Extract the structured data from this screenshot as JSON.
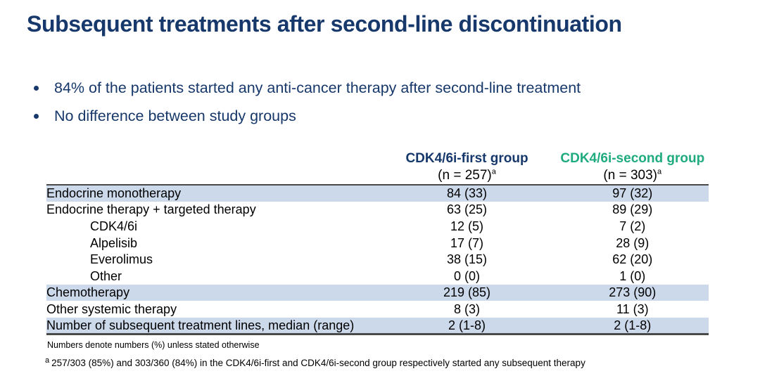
{
  "colors": {
    "navy": "#17386B",
    "green": "#1FAB7F",
    "highlight": "#CCD9EB",
    "rule": "#4A4A4A",
    "text": "#000000"
  },
  "title": "Subsequent treatments after second-line discontinuation",
  "bullets": [
    "84% of the patients started any anti-cancer therapy after second-line treatment",
    "No difference between study groups"
  ],
  "table": {
    "group_headers": [
      {
        "label": "CDK4/6i-first group",
        "n": "(n = 257)",
        "sup": "a"
      },
      {
        "label": "CDK4/6i-second group",
        "n": "(n = 303)",
        "sup": "a"
      }
    ],
    "rows": [
      {
        "label": "Endocrine monotherapy",
        "first": "84 (33)",
        "second": "97 (32)",
        "highlight": true,
        "indent": false
      },
      {
        "label": "Endocrine therapy + targeted therapy",
        "first": "63 (25)",
        "second": "89 (29)",
        "highlight": false,
        "indent": false
      },
      {
        "label": "CDK4/6i",
        "first": "12 (5)",
        "second": "7 (2)",
        "highlight": false,
        "indent": true
      },
      {
        "label": "Alpelisib",
        "first": "17 (7)",
        "second": "28 (9)",
        "highlight": false,
        "indent": true
      },
      {
        "label": "Everolimus",
        "first": "38 (15)",
        "second": "62 (20)",
        "highlight": false,
        "indent": true
      },
      {
        "label": "Other",
        "first": "0 (0)",
        "second": "1 (0)",
        "highlight": false,
        "indent": true
      },
      {
        "label": "Chemotherapy",
        "first": "219 (85)",
        "second": "273 (90)",
        "highlight": true,
        "indent": false
      },
      {
        "label": "Other systemic therapy",
        "first": "8 (3)",
        "second": "11 (3)",
        "highlight": false,
        "indent": false
      },
      {
        "label": "Number of subsequent treatment lines, median (range)",
        "first": "2 (1-8)",
        "second": "2 (1-8)",
        "highlight": true,
        "indent": false
      }
    ]
  },
  "footnotes": {
    "general": "Numbers denote numbers (%) unless stated otherwise",
    "sup": "a",
    "detail": "257/303 (85%) and 303/360 (84%) in the CDK4/6i-first and CDK4/6i-second group respectively started any subsequent therapy"
  }
}
